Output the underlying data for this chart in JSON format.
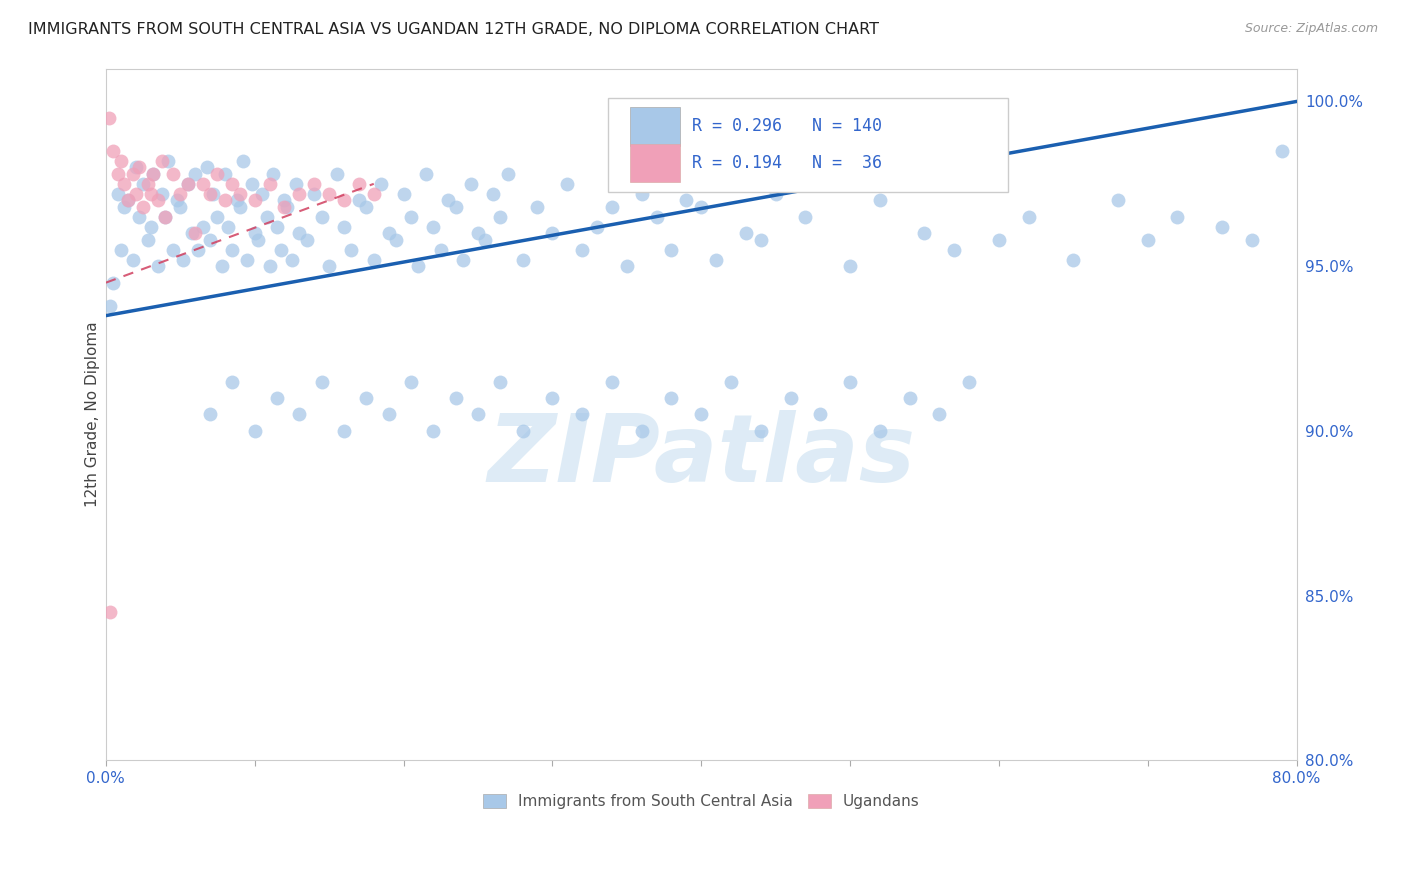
{
  "title": "IMMIGRANTS FROM SOUTH CENTRAL ASIA VS UGANDAN 12TH GRADE, NO DIPLOMA CORRELATION CHART",
  "source": "Source: ZipAtlas.com",
  "ylabel": "12th Grade, No Diploma",
  "xmin": 0.0,
  "xmax": 80.0,
  "ymin": 80.0,
  "ymax": 101.0,
  "yticks": [
    80,
    85,
    90,
    95,
    100
  ],
  "blue_R": 0.296,
  "blue_N": 140,
  "pink_R": 0.194,
  "pink_N": 36,
  "blue_color": "#a8c8e8",
  "blue_edge": "#7aaed4",
  "pink_color": "#f0a0b8",
  "pink_edge": "#e07090",
  "trend_blue_color": "#1a5fb0",
  "trend_pink_color": "#d04060",
  "legend_blue_label": "Immigrants from South Central Asia",
  "legend_pink_label": "Ugandans",
  "watermark_text": "ZIPatlas",
  "watermark_color": "#c8dff0",
  "blue_trend_x0": 0.0,
  "blue_trend_x1": 80.0,
  "blue_trend_y0": 93.5,
  "blue_trend_y1": 100.0,
  "pink_trend_x0": 0.0,
  "pink_trend_x1": 18.0,
  "pink_trend_y0": 94.5,
  "pink_trend_y1": 97.5,
  "blue_x": [
    0.3,
    0.5,
    0.8,
    1.0,
    1.2,
    1.5,
    1.8,
    2.0,
    2.2,
    2.5,
    2.8,
    3.0,
    3.2,
    3.5,
    3.8,
    4.0,
    4.2,
    4.5,
    4.8,
    5.0,
    5.2,
    5.5,
    5.8,
    6.0,
    6.2,
    6.5,
    6.8,
    7.0,
    7.2,
    7.5,
    7.8,
    8.0,
    8.2,
    8.5,
    8.8,
    9.0,
    9.2,
    9.5,
    9.8,
    10.0,
    10.2,
    10.5,
    10.8,
    11.0,
    11.2,
    11.5,
    11.8,
    12.0,
    12.2,
    12.5,
    12.8,
    13.0,
    13.5,
    14.0,
    14.5,
    15.0,
    15.5,
    16.0,
    16.5,
    17.0,
    17.5,
    18.0,
    18.5,
    19.0,
    19.5,
    20.0,
    20.5,
    21.0,
    21.5,
    22.0,
    22.5,
    23.0,
    23.5,
    24.0,
    24.5,
    25.0,
    25.5,
    26.0,
    26.5,
    27.0,
    28.0,
    29.0,
    30.0,
    31.0,
    32.0,
    33.0,
    34.0,
    35.0,
    36.0,
    37.0,
    38.0,
    39.0,
    40.0,
    41.0,
    42.0,
    43.0,
    44.0,
    45.0,
    47.0,
    50.0,
    52.0,
    55.0,
    57.0,
    60.0,
    62.0,
    65.0,
    68.0,
    70.0,
    72.0,
    75.0,
    77.0,
    79.0,
    7.0,
    8.5,
    10.0,
    11.5,
    13.0,
    14.5,
    16.0,
    17.5,
    19.0,
    20.5,
    22.0,
    23.5,
    25.0,
    26.5,
    28.0,
    30.0,
    32.0,
    34.0,
    36.0,
    38.0,
    40.0,
    42.0,
    44.0,
    46.0,
    48.0,
    50.0,
    52.0,
    54.0,
    56.0,
    58.0
  ],
  "blue_y": [
    93.8,
    94.5,
    97.2,
    95.5,
    96.8,
    97.0,
    95.2,
    98.0,
    96.5,
    97.5,
    95.8,
    96.2,
    97.8,
    95.0,
    97.2,
    96.5,
    98.2,
    95.5,
    97.0,
    96.8,
    95.2,
    97.5,
    96.0,
    97.8,
    95.5,
    96.2,
    98.0,
    95.8,
    97.2,
    96.5,
    95.0,
    97.8,
    96.2,
    95.5,
    97.0,
    96.8,
    98.2,
    95.2,
    97.5,
    96.0,
    95.8,
    97.2,
    96.5,
    95.0,
    97.8,
    96.2,
    95.5,
    97.0,
    96.8,
    95.2,
    97.5,
    96.0,
    95.8,
    97.2,
    96.5,
    95.0,
    97.8,
    96.2,
    95.5,
    97.0,
    96.8,
    95.2,
    97.5,
    96.0,
    95.8,
    97.2,
    96.5,
    95.0,
    97.8,
    96.2,
    95.5,
    97.0,
    96.8,
    95.2,
    97.5,
    96.0,
    95.8,
    97.2,
    96.5,
    97.8,
    95.2,
    96.8,
    96.0,
    97.5,
    95.5,
    96.2,
    96.8,
    95.0,
    97.2,
    96.5,
    95.5,
    97.0,
    96.8,
    95.2,
    97.5,
    96.0,
    95.8,
    97.2,
    96.5,
    95.0,
    97.0,
    96.0,
    95.5,
    95.8,
    96.5,
    95.2,
    97.0,
    95.8,
    96.5,
    96.2,
    95.8,
    98.5,
    90.5,
    91.5,
    90.0,
    91.0,
    90.5,
    91.5,
    90.0,
    91.0,
    90.5,
    91.5,
    90.0,
    91.0,
    90.5,
    91.5,
    90.0,
    91.0,
    90.5,
    91.5,
    90.0,
    91.0,
    90.5,
    91.5,
    90.0,
    91.0,
    90.5,
    91.5,
    90.0,
    91.0,
    90.5,
    91.5
  ],
  "pink_x": [
    0.2,
    0.5,
    0.8,
    1.0,
    1.2,
    1.5,
    1.8,
    2.0,
    2.2,
    2.5,
    2.8,
    3.0,
    3.2,
    3.5,
    3.8,
    4.0,
    4.5,
    5.0,
    5.5,
    6.0,
    6.5,
    7.0,
    7.5,
    8.0,
    8.5,
    9.0,
    10.0,
    11.0,
    12.0,
    13.0,
    14.0,
    15.0,
    16.0,
    17.0,
    18.0,
    0.3
  ],
  "pink_y": [
    99.5,
    98.5,
    97.8,
    98.2,
    97.5,
    97.0,
    97.8,
    97.2,
    98.0,
    96.8,
    97.5,
    97.2,
    97.8,
    97.0,
    98.2,
    96.5,
    97.8,
    97.2,
    97.5,
    96.0,
    97.5,
    97.2,
    97.8,
    97.0,
    97.5,
    97.2,
    97.0,
    97.5,
    96.8,
    97.2,
    97.5,
    97.2,
    97.0,
    97.5,
    97.2,
    84.5
  ]
}
